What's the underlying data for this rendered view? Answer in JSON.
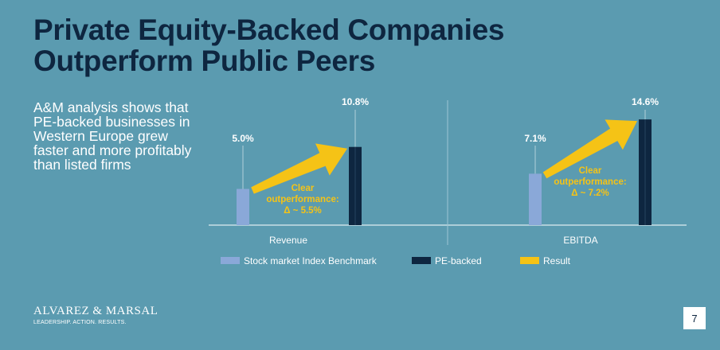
{
  "slide": {
    "title_lines": [
      "Private Equity-Backed Companies",
      "Outperform Public Peers"
    ],
    "lead_text": "A&M analysis shows that PE-backed businesses in Western Europe grew faster and more profitably than listed firms",
    "logo_name": "ALVAREZ & MARSAL",
    "logo_tagline": "LEADERSHIP. ACTION. RESULTS.",
    "page_number": "7"
  },
  "colors": {
    "background": "#5b9bb0",
    "title": "#0e2640",
    "benchmark": "#8aa8d8",
    "pe_backed": "#0e2640",
    "result": "#f5c316"
  },
  "chart_data": {
    "type": "bar",
    "title": "",
    "categories": [
      "Revenue",
      "EBITDA"
    ],
    "series": [
      {
        "name": "Stock market Index Benchmark",
        "values": [
          5.0,
          7.1
        ],
        "labels": [
          "5.0%",
          "7.1%"
        ]
      },
      {
        "name": "PE-backed",
        "values": [
          10.8,
          14.6
        ],
        "labels": [
          "10.8%",
          "14.6%"
        ]
      }
    ],
    "result_series_name": "Result",
    "annotations": [
      {
        "category": "Revenue",
        "lines": [
          "Clear",
          "outperformance:",
          "Δ ~ 5.5%"
        ]
      },
      {
        "category": "EBITDA",
        "lines": [
          "Clear",
          "outperformance:",
          "Δ ~ 7.2%"
        ]
      }
    ],
    "ylim": [
      0,
      15
    ],
    "grid": false,
    "legend_position": "bottom"
  }
}
